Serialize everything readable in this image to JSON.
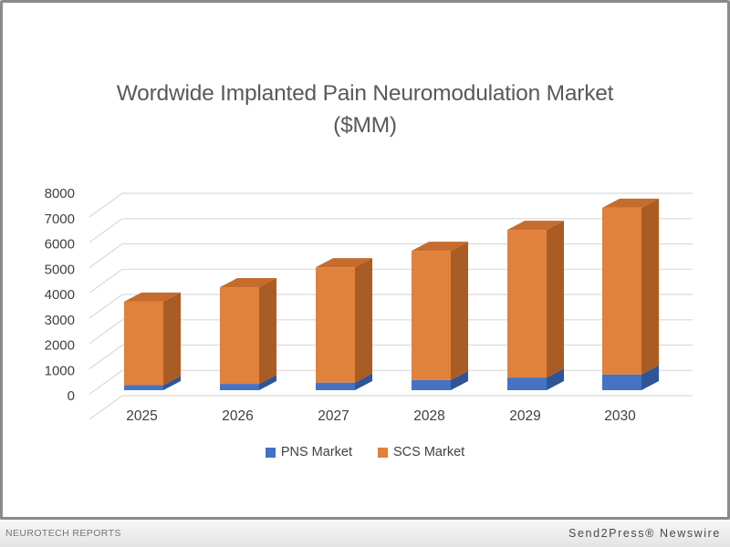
{
  "page": {
    "footer_left": "NEUROTECH REPORTS",
    "footer_right": "Send2Press® Newswire"
  },
  "chart_data": {
    "type": "bar",
    "subtype": "3d-stacked-column",
    "title": "Wordwide Implanted Pain Neuromodulation Market ($MM)",
    "title_lines": [
      "Wordwide Implanted Pain Neuromodulation Market",
      "($MM)"
    ],
    "categories": [
      "2025",
      "2026",
      "2027",
      "2028",
      "2029",
      "2030"
    ],
    "series": [
      {
        "name": "PNS Market",
        "color": "#4472C4",
        "side_color": "#2F5597",
        "values": [
          200,
          250,
          300,
          400,
          500,
          620
        ]
      },
      {
        "name": "SCS Market",
        "color": "#E0813C",
        "side_color": "#A95D24",
        "top_color": "#C66C2D",
        "values": [
          3300,
          3820,
          4560,
          5110,
          5840,
          6590
        ]
      }
    ],
    "totals": [
      3500,
      4070,
      4860,
      5510,
      6340,
      7210
    ],
    "xlabel": "",
    "ylabel": "",
    "ylim": [
      0,
      8000
    ],
    "ytick_step": 1000,
    "yticks": [
      0,
      1000,
      2000,
      3000,
      4000,
      5000,
      6000,
      7000,
      8000
    ],
    "grid": true,
    "legend_position": "bottom",
    "gridline_color": "#D9D9D9",
    "label_color": "#404040",
    "title_color": "#595959"
  }
}
